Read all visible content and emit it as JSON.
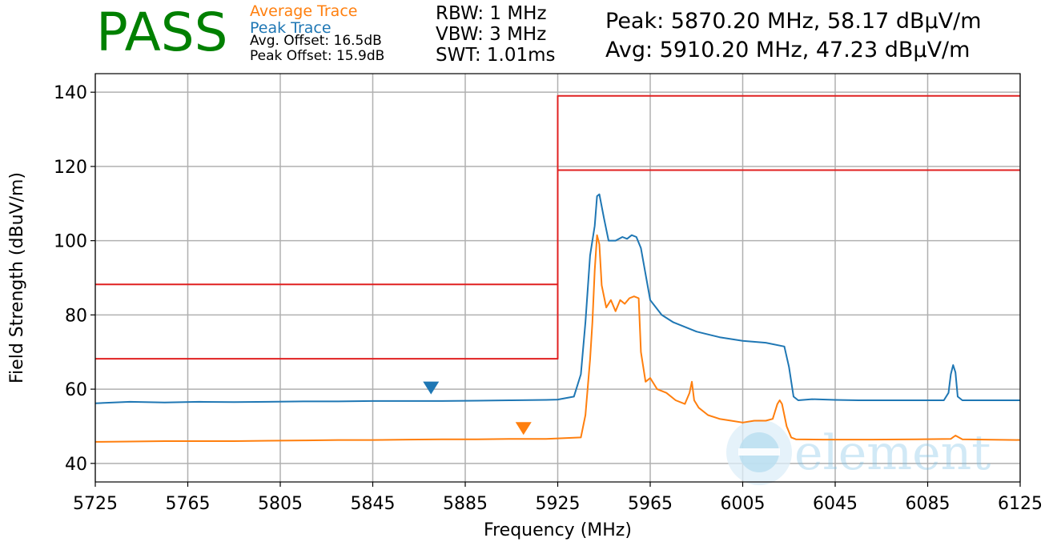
{
  "header": {
    "verdict": "PASS",
    "verdict_color": "#008000",
    "legend": {
      "average": "Average Trace",
      "peak": "Peak Trace",
      "average_color": "#ff7f0e",
      "peak_color": "#1f77b4"
    },
    "avg_offset": "Avg. Offset: 16.5dB",
    "peak_offset": "Peak Offset: 15.9dB",
    "rbw": "RBW: 1 MHz",
    "vbw": "VBW: 3 MHz",
    "swt": "SWT: 1.01ms",
    "peak_measurement": "Peak: 5870.20 MHz, 58.17 dBµV/m",
    "avg_measurement": "Avg: 5910.20 MHz, 47.23 dBµV/m"
  },
  "watermark": {
    "text": "element",
    "icon": "element-logo-icon",
    "color": "#7ec3e6"
  },
  "chart_data": {
    "type": "line",
    "xlabel": "Frequency (MHz)",
    "ylabel": "Field Strength (dBuV/m)",
    "xlim": [
      5725,
      6125
    ],
    "ylim": [
      35,
      145
    ],
    "xticks": [
      5725,
      5765,
      5805,
      5845,
      5885,
      5925,
      5965,
      6005,
      6045,
      6085,
      6125
    ],
    "yticks": [
      40,
      60,
      80,
      100,
      120,
      140
    ],
    "grid": true,
    "series": [
      {
        "name": "Peak Trace",
        "color": "#1f77b4",
        "x": [
          5725,
          5740,
          5755,
          5770,
          5785,
          5800,
          5815,
          5830,
          5845,
          5860,
          5875,
          5890,
          5905,
          5920,
          5925,
          5932,
          5935,
          5937,
          5939,
          5941,
          5942,
          5943,
          5945,
          5947,
          5950,
          5953,
          5955,
          5957,
          5959,
          5961,
          5963,
          5965,
          5970,
          5975,
          5985,
          5995,
          6005,
          6015,
          6023,
          6025,
          6027,
          6029,
          6035,
          6045,
          6055,
          6065,
          6075,
          6085,
          6092,
          6094,
          6095,
          6096,
          6097,
          6098,
          6100,
          6110,
          6125
        ],
        "y": [
          56.2,
          56.6,
          56.4,
          56.6,
          56.5,
          56.6,
          56.7,
          56.7,
          56.8,
          56.8,
          56.8,
          56.9,
          57.0,
          57.1,
          57.2,
          58.0,
          64.0,
          78.0,
          96.0,
          104.0,
          112.0,
          112.5,
          106.0,
          100.0,
          100.0,
          101.0,
          100.5,
          101.5,
          101.0,
          98.0,
          91.0,
          84.0,
          80.0,
          78.0,
          75.5,
          74.0,
          73.0,
          72.5,
          71.5,
          66.0,
          58.0,
          57.0,
          57.3,
          57.1,
          57.0,
          57.0,
          57.0,
          57.0,
          57.0,
          59.0,
          64.0,
          66.5,
          64.5,
          58.0,
          57.0,
          57.0,
          57.0
        ]
      },
      {
        "name": "Average Trace",
        "color": "#ff7f0e",
        "x": [
          5725,
          5740,
          5755,
          5770,
          5785,
          5800,
          5815,
          5830,
          5845,
          5860,
          5875,
          5890,
          5905,
          5920,
          5935,
          5937,
          5939,
          5940,
          5941,
          5942,
          5943,
          5944,
          5946,
          5948,
          5950,
          5952,
          5954,
          5956,
          5958,
          5960,
          5961,
          5963,
          5965,
          5968,
          5972,
          5976,
          5980,
          5982,
          5983,
          5984,
          5986,
          5990,
          5995,
          6000,
          6005,
          6010,
          6015,
          6018,
          6020,
          6021,
          6022,
          6024,
          6026,
          6028,
          6040,
          6060,
          6080,
          6095,
          6097,
          6100,
          6110,
          6125
        ],
        "y": [
          45.8,
          45.9,
          46.0,
          46.0,
          46.0,
          46.1,
          46.2,
          46.3,
          46.3,
          46.4,
          46.5,
          46.5,
          46.6,
          46.6,
          47.0,
          53.0,
          68.0,
          78.0,
          92.0,
          101.5,
          99.0,
          88.0,
          82.0,
          84.0,
          81.0,
          84.0,
          83.0,
          84.5,
          85.0,
          84.5,
          70.0,
          62.0,
          63.0,
          60.0,
          59.0,
          57.0,
          56.0,
          59.0,
          62.0,
          57.0,
          55.0,
          53.0,
          52.0,
          51.5,
          51.0,
          51.5,
          51.5,
          52.0,
          56.0,
          57.0,
          56.0,
          50.0,
          47.0,
          46.5,
          46.4,
          46.4,
          46.5,
          46.6,
          47.5,
          46.5,
          46.4,
          46.3
        ]
      },
      {
        "name": "Peak Limit",
        "color": "#e02020",
        "x": [
          5725,
          5925,
          5925,
          6125
        ],
        "y": [
          88.2,
          88.2,
          139.0,
          139.0
        ]
      },
      {
        "name": "Average Limit",
        "color": "#e02020",
        "x": [
          5725,
          5925,
          5925,
          6125
        ],
        "y": [
          68.2,
          68.2,
          119.0,
          119.0
        ]
      }
    ],
    "markers": [
      {
        "name": "Peak Marker",
        "x": 5870.2,
        "y": 58.17,
        "color": "#1f77b4"
      },
      {
        "name": "Average Marker",
        "x": 5910.2,
        "y": 47.23,
        "color": "#ff7f0e"
      }
    ]
  }
}
